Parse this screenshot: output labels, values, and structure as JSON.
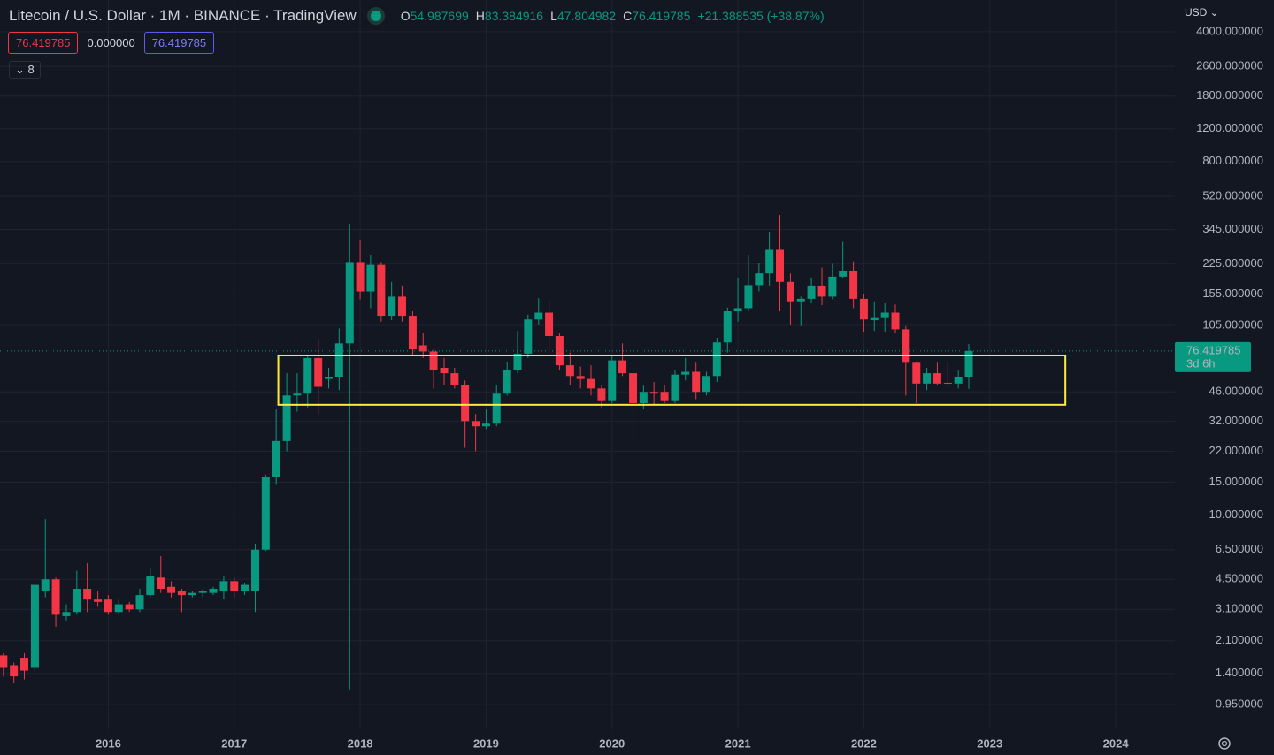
{
  "header": {
    "title": "Litecoin / U.S. Dollar · 1M · BINANCE · TradingView",
    "ohlc": [
      {
        "label": "O",
        "value": "54.987699"
      },
      {
        "label": "H",
        "value": "83.384916"
      },
      {
        "label": "L",
        "value": "47.804982"
      },
      {
        "label": "C",
        "value": "76.419785"
      }
    ],
    "change": "+21.388535 (+38.87%)",
    "price_boxes": [
      "76.419785",
      "0.000000",
      "76.419785"
    ],
    "indicator_count": "8",
    "currency": "USD"
  },
  "chart_data": {
    "type": "candlestick",
    "log_scale": true,
    "grid": true,
    "up_color": "#089981",
    "down_color": "#f23645",
    "price_label": "76.419785",
    "countdown": "3d 6h",
    "zone": {
      "x0": 2017.35,
      "x1": 2023.6,
      "y0": 39.2,
      "y1": 72.3,
      "color": "#ffeb3b"
    },
    "xlim": [
      2015.14,
      2024.47
    ],
    "xticks": [
      2016,
      2017,
      2018,
      2019,
      2020,
      2021,
      2022,
      2023,
      2024
    ],
    "ylim": [
      0.7,
      5930
    ],
    "yticks": [
      {
        "value": 4000,
        "label": "4000.000000"
      },
      {
        "value": 2600,
        "label": "2600.000000"
      },
      {
        "value": 1800,
        "label": "1800.000000"
      },
      {
        "value": 1200,
        "label": "1200.000000"
      },
      {
        "value": 800,
        "label": "800.000000"
      },
      {
        "value": 520,
        "label": "520.000000"
      },
      {
        "value": 345,
        "label": "345.000000"
      },
      {
        "value": 225,
        "label": "225.000000"
      },
      {
        "value": 155,
        "label": "155.000000"
      },
      {
        "value": 105,
        "label": "105.000000"
      },
      {
        "value": 46,
        "label": "46.000000"
      },
      {
        "value": 32,
        "label": "32.000000"
      },
      {
        "value": 22,
        "label": "22.000000"
      },
      {
        "value": 15,
        "label": "15.000000"
      },
      {
        "value": 10,
        "label": "10.000000"
      },
      {
        "value": 6.5,
        "label": "6.500000"
      },
      {
        "value": 4.5,
        "label": "4.500000"
      },
      {
        "value": 3.1,
        "label": "3.100000"
      },
      {
        "value": 2.1,
        "label": "2.100000"
      },
      {
        "value": 1.4,
        "label": "1.400000"
      },
      {
        "value": 0.95,
        "label": "0.950000"
      }
    ],
    "x": [
      2015.167,
      2015.25,
      2015.333,
      2015.417,
      2015.5,
      2015.583,
      2015.667,
      2015.75,
      2015.833,
      2015.917,
      2016,
      2016.083,
      2016.167,
      2016.25,
      2016.333,
      2016.417,
      2016.5,
      2016.583,
      2016.667,
      2016.75,
      2016.833,
      2016.917,
      2017,
      2017.083,
      2017.167,
      2017.25,
      2017.333,
      2017.417,
      2017.5,
      2017.583,
      2017.667,
      2017.75,
      2017.833,
      2017.917,
      2018,
      2018.083,
      2018.167,
      2018.25,
      2018.333,
      2018.417,
      2018.5,
      2018.583,
      2018.667,
      2018.75,
      2018.833,
      2018.917,
      2019,
      2019.083,
      2019.167,
      2019.25,
      2019.333,
      2019.417,
      2019.5,
      2019.583,
      2019.667,
      2019.75,
      2019.833,
      2019.917,
      2020,
      2020.083,
      2020.167,
      2020.25,
      2020.333,
      2020.417,
      2020.5,
      2020.583,
      2020.667,
      2020.75,
      2020.833,
      2020.917,
      2021,
      2021.083,
      2021.167,
      2021.25,
      2021.333,
      2021.417,
      2021.5,
      2021.583,
      2021.667,
      2021.75,
      2021.833,
      2021.917,
      2022,
      2022.083,
      2022.167,
      2022.25,
      2022.333,
      2022.417,
      2022.5,
      2022.583,
      2022.667,
      2022.75,
      2022.833
    ],
    "open": [
      1.75,
      1.55,
      1.7,
      1.5,
      3.9,
      4.5,
      2.85,
      3.0,
      4.0,
      3.5,
      3.5,
      3.0,
      3.3,
      3.1,
      3.7,
      4.6,
      4.1,
      3.9,
      3.7,
      3.8,
      3.8,
      3.9,
      4.4,
      3.9,
      3.9,
      6.5,
      16,
      25,
      44,
      45,
      70,
      54,
      55,
      84,
      230,
      160,
      222,
      117,
      150,
      117,
      82,
      76,
      62,
      58,
      50,
      32,
      30,
      31,
      45,
      60,
      74,
      113,
      123,
      92,
      64,
      56,
      54,
      48,
      41,
      68,
      58,
      40,
      46,
      46,
      41,
      57,
      59,
      46,
      56,
      85,
      125,
      130,
      173,
      200,
      268,
      180,
      140,
      146,
      172,
      150,
      192,
      207,
      146,
      112,
      115,
      123,
      100,
      66,
      51,
      58,
      51.5,
      51,
      54.987699
    ],
    "high": [
      1.8,
      1.6,
      1.8,
      4.4,
      9.5,
      4.6,
      3.3,
      5.0,
      5.5,
      3.9,
      3.7,
      3.5,
      3.4,
      4.0,
      5.2,
      6.0,
      4.4,
      4.0,
      3.9,
      4.0,
      4.1,
      4.7,
      4.6,
      4.3,
      7.0,
      16.5,
      37,
      58,
      58,
      72,
      88,
      62,
      101,
      370,
      300,
      250,
      230,
      180,
      172,
      125,
      95,
      78,
      70,
      62,
      53,
      35,
      37,
      50,
      67,
      98,
      120,
      147,
      141,
      95,
      75,
      63,
      64,
      50,
      72,
      84,
      66,
      50,
      52,
      50,
      60,
      70,
      66,
      59,
      90,
      131,
      190,
      250,
      227,
      335,
      413,
      200,
      150,
      190,
      215,
      225,
      296,
      232,
      155,
      140,
      138,
      136,
      104,
      67,
      62,
      66,
      66,
      60,
      83.384916
    ],
    "low": [
      1.35,
      1.25,
      1.3,
      1.4,
      3.6,
      2.5,
      2.7,
      2.9,
      3.0,
      3.2,
      2.9,
      2.9,
      3.0,
      3.0,
      3.6,
      3.8,
      3.6,
      3.0,
      3.6,
      3.6,
      3.7,
      3.5,
      3.6,
      3.7,
      3.0,
      6.4,
      14.5,
      22,
      36,
      38,
      35,
      48,
      47,
      1.15,
      145,
      130,
      110,
      112,
      110,
      72,
      70,
      48,
      50,
      48,
      23,
      22,
      29,
      30,
      44,
      58,
      70,
      105,
      74,
      60,
      50,
      48,
      44,
      38,
      40,
      56,
      24,
      37,
      39,
      40,
      40,
      53,
      42,
      44,
      52,
      75,
      110,
      125,
      160,
      170,
      125,
      105,
      104,
      138,
      135,
      145,
      188,
      130,
      96,
      98,
      97,
      95,
      44,
      40,
      47,
      50,
      49,
      48,
      47.804982
    ],
    "close": [
      1.5,
      1.35,
      1.45,
      4.2,
      4.5,
      2.9,
      3.0,
      4.0,
      3.5,
      3.4,
      3.0,
      3.3,
      3.1,
      3.7,
      4.7,
      4.0,
      3.8,
      3.7,
      3.8,
      3.9,
      4.0,
      4.4,
      3.9,
      4.2,
      6.5,
      16,
      25,
      44,
      45,
      70,
      49,
      55,
      84,
      230,
      160,
      222,
      117,
      150,
      117,
      78,
      76,
      60,
      58,
      50,
      32,
      30,
      31,
      45,
      60,
      74,
      113,
      123,
      92,
      64,
      56,
      54,
      48,
      41,
      68,
      58,
      40,
      46,
      45,
      41,
      57,
      59,
      46,
      56,
      85,
      125,
      130,
      173,
      200,
      268,
      180,
      140,
      146,
      172,
      150,
      192,
      207,
      146,
      113,
      115,
      123,
      100,
      66,
      51,
      58,
      51,
      51,
      55,
      76.419785
    ]
  }
}
